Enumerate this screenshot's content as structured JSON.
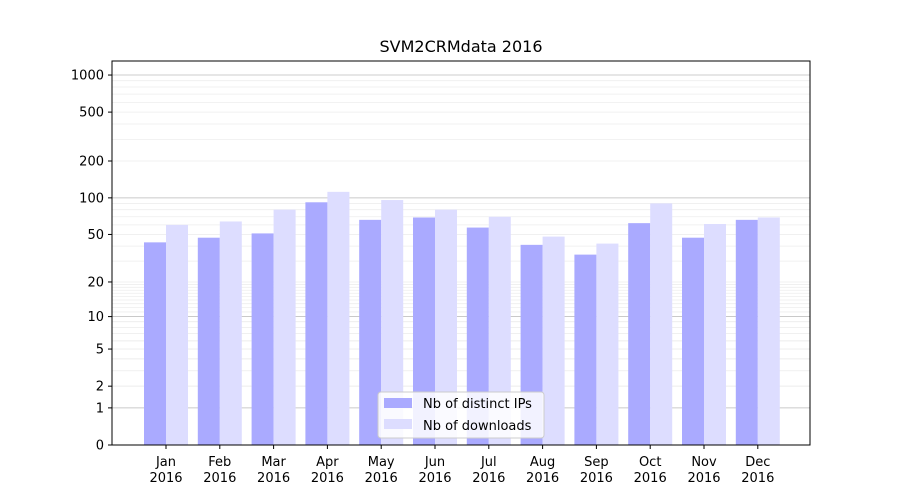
{
  "chart_data": {
    "type": "bar",
    "title": "SVM2CRMdata 2016",
    "xlabel": "",
    "ylabel": "",
    "categories": [
      "Jan\n2016",
      "Feb\n2016",
      "Mar\n2016",
      "Apr\n2016",
      "May\n2016",
      "Jun\n2016",
      "Jul\n2016",
      "Aug\n2016",
      "Sep\n2016",
      "Oct\n2016",
      "Nov\n2016",
      "Dec\n2016"
    ],
    "yscale": "log(1+y)",
    "ylim": [
      0,
      1300
    ],
    "yticks": [
      0,
      1,
      2,
      5,
      10,
      20,
      50,
      100,
      200,
      500,
      1000
    ],
    "grid": true,
    "legend_position": "bottom-center",
    "series": [
      {
        "name": "Nb of distinct IPs",
        "color": "#aaaaff",
        "values": [
          43,
          47,
          51,
          92,
          66,
          69,
          57,
          41,
          34,
          62,
          47,
          66
        ]
      },
      {
        "name": "Nb of downloads",
        "color": "#ddddff",
        "values": [
          60,
          64,
          80,
          112,
          96,
          80,
          70,
          48,
          42,
          90,
          61,
          69
        ]
      }
    ]
  }
}
